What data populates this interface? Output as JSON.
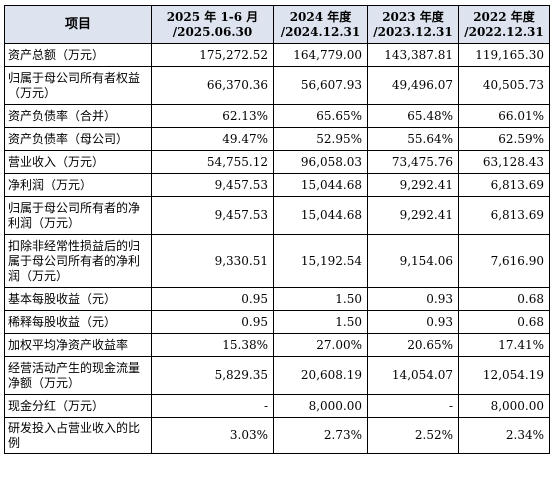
{
  "table": {
    "headers": [
      {
        "line1": "项目",
        "line2": ""
      },
      {
        "line1": "2025 年 1-6 月",
        "line2": "/2025.06.30"
      },
      {
        "line1": "2024 年度",
        "line2": "/2024.12.31"
      },
      {
        "line1": "2023 年度",
        "line2": "/2023.12.31"
      },
      {
        "line1": "2022 年度",
        "line2": "/2022.12.31"
      }
    ],
    "rows": [
      {
        "label": "资产总额（万元）",
        "v2025": "175,272.52",
        "v2024": "164,779.00",
        "v2023": "143,387.81",
        "v2022": "119,165.30"
      },
      {
        "label": "归属于母公司所有者权益（万元）",
        "v2025": "66,370.36",
        "v2024": "56,607.93",
        "v2023": "49,496.07",
        "v2022": "40,505.73"
      },
      {
        "label": "资产负债率（合并）",
        "v2025": "62.13%",
        "v2024": "65.65%",
        "v2023": "65.48%",
        "v2022": "66.01%"
      },
      {
        "label": "资产负债率（母公司）",
        "v2025": "49.47%",
        "v2024": "52.95%",
        "v2023": "55.64%",
        "v2022": "62.59%"
      },
      {
        "label": "营业收入（万元）",
        "v2025": "54,755.12",
        "v2024": "96,058.03",
        "v2023": "73,475.76",
        "v2022": "63,128.43"
      },
      {
        "label": "净利润（万元）",
        "v2025": "9,457.53",
        "v2024": "15,044.68",
        "v2023": "9,292.41",
        "v2022": "6,813.69"
      },
      {
        "label": "归属于母公司所有者的净利润（万元）",
        "v2025": "9,457.53",
        "v2024": "15,044.68",
        "v2023": "9,292.41",
        "v2022": "6,813.69"
      },
      {
        "label": "扣除非经常性损益后的归属于母公司所有者的净利润（万元）",
        "v2025": "9,330.51",
        "v2024": "15,192.54",
        "v2023": "9,154.06",
        "v2022": "7,616.90"
      },
      {
        "label": "基本每股收益（元）",
        "v2025": "0.95",
        "v2024": "1.50",
        "v2023": "0.93",
        "v2022": "0.68"
      },
      {
        "label": "稀释每股收益（元）",
        "v2025": "0.95",
        "v2024": "1.50",
        "v2023": "0.93",
        "v2022": "0.68"
      },
      {
        "label": "加权平均净资产收益率",
        "v2025": "15.38%",
        "v2024": "27.00%",
        "v2023": "20.65%",
        "v2022": "17.41%"
      },
      {
        "label": "经营活动产生的现金流量净额（万元）",
        "v2025": "5,829.35",
        "v2024": "20,608.19",
        "v2023": "14,054.07",
        "v2022": "12,054.19"
      },
      {
        "label": "现金分红（万元）",
        "v2025": "-",
        "v2024": "8,000.00",
        "v2023": "-",
        "v2022": "8,000.00"
      },
      {
        "label": "研发投入占营业收入的比例",
        "v2025": "3.03%",
        "v2024": "2.73%",
        "v2023": "2.52%",
        "v2022": "2.34%"
      }
    ]
  }
}
